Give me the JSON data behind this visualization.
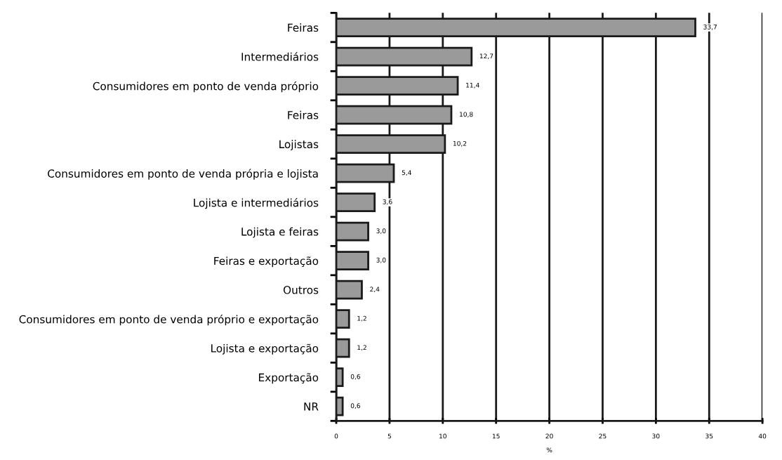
{
  "chart_data": {
    "type": "bar",
    "orientation": "horizontal",
    "xlabel": "%",
    "categories": [
      "Feiras",
      "Intermediários",
      "Consumidores em ponto de venda próprio",
      "Feiras",
      "Lojistas",
      "Consumidores em ponto de venda própria e lojista",
      "Lojista e intermediários",
      "Lojista e feiras",
      "Feiras e exportação",
      "Outros",
      "Consumidores em ponto de venda próprio e exportação",
      "Lojista e exportação",
      "Exportação",
      "NR"
    ],
    "values": [
      33.7,
      12.7,
      11.4,
      10.8,
      10.2,
      5.4,
      3.6,
      3.0,
      3.0,
      2.4,
      1.2,
      1.2,
      0.6,
      0.6
    ],
    "value_labels": [
      "33,7",
      "12,7",
      "11,4",
      "10,8",
      "10,2",
      "5,4",
      "3,6",
      "3,0",
      "3,0",
      "2,4",
      "1,2",
      "1,2",
      "0,6",
      "0,6"
    ],
    "color": "#9a9a9a",
    "xlim": [
      0,
      40
    ],
    "xticks": [
      0,
      5,
      10,
      15,
      20,
      25,
      30,
      35,
      40
    ],
    "grid": "x"
  }
}
